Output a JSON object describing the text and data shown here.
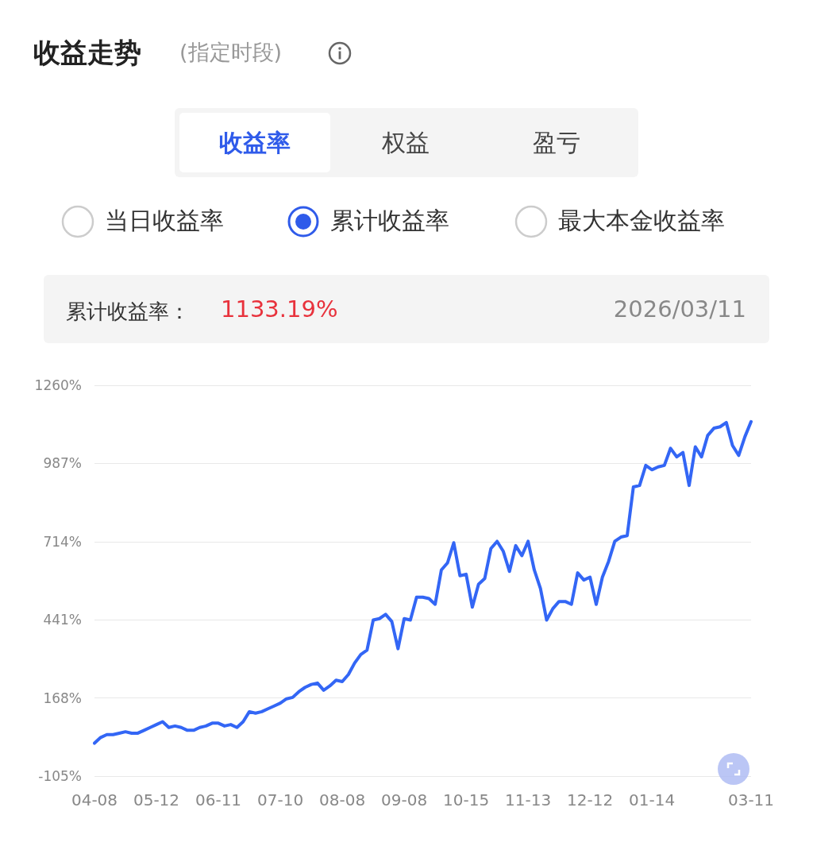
{
  "chart_data": {
    "type": "line",
    "title": "收益走势",
    "subtitle": "(指定时段)",
    "annotations": [
      "收益率",
      "权益",
      "盈亏",
      "当日收益率",
      "累计收益率",
      "最大本金收益率",
      "累计收益率：",
      "1133.19%",
      "2026/03/11"
    ],
    "categories": [
      "04-08",
      null,
      null,
      null,
      null,
      null,
      null,
      null,
      null,
      null,
      "05-12",
      null,
      null,
      null,
      null,
      null,
      null,
      null,
      null,
      null,
      "06-11",
      null,
      null,
      null,
      null,
      null,
      null,
      null,
      null,
      null,
      "07-10",
      null,
      null,
      null,
      null,
      null,
      null,
      null,
      null,
      null,
      "08-08",
      null,
      null,
      null,
      null,
      null,
      null,
      null,
      null,
      null,
      "09-08",
      null,
      null,
      null,
      null,
      null,
      null,
      null,
      null,
      null,
      "10-15",
      null,
      null,
      null,
      null,
      null,
      null,
      null,
      null,
      null,
      "11-13",
      null,
      null,
      null,
      null,
      null,
      null,
      null,
      null,
      null,
      "12-12",
      null,
      null,
      null,
      null,
      null,
      null,
      null,
      null,
      null,
      "01-14",
      null,
      null,
      null,
      null,
      null,
      null,
      null,
      null,
      null,
      null,
      null,
      null,
      null,
      null,
      null,
      "03-11"
    ],
    "series": [
      {
        "color": "#3366f5",
        "values": [
          10,
          30,
          40,
          40,
          45,
          50,
          45,
          45,
          55,
          65,
          75,
          85,
          65,
          70,
          65,
          55,
          55,
          65,
          70,
          80,
          80,
          70,
          75,
          65,
          85,
          120,
          115,
          120,
          130,
          140,
          150,
          165,
          170,
          190,
          205,
          215,
          220,
          195,
          210,
          230,
          225,
          250,
          290,
          320,
          335,
          440,
          445,
          460,
          435,
          340,
          445,
          440,
          520,
          520,
          515,
          495,
          615,
          640,
          710,
          595,
          600,
          485,
          565,
          585,
          690,
          715,
          680,
          610,
          700,
          665,
          715,
          615,
          550,
          440,
          480,
          505,
          505,
          495,
          605,
          580,
          590,
          495,
          590,
          645,
          715,
          730,
          735,
          905,
          910,
          980,
          965,
          975,
          980,
          1040,
          1010,
          1025,
          910,
          1045,
          1010,
          1085,
          1110,
          1115,
          1130,
          1050,
          1015,
          1080,
          1133
        ]
      }
    ],
    "ylim": [
      -105,
      1260
    ],
    "yticks": [
      {
        "value": -105,
        "label": "-105%"
      },
      {
        "value": 168,
        "label": "168%"
      },
      {
        "value": 441,
        "label": "441%"
      },
      {
        "value": 714,
        "label": "714%"
      },
      {
        "value": 987,
        "label": "987%"
      },
      {
        "value": 1260,
        "label": "1260%"
      }
    ],
    "grid": "y",
    "marker": "none",
    "line_style": "solid"
  }
}
